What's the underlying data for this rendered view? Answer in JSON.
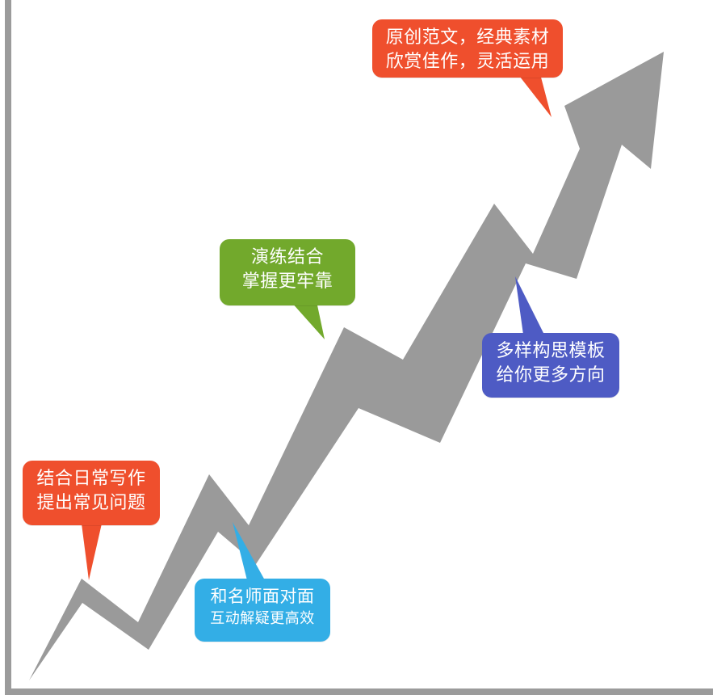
{
  "colors": {
    "arrow": "#9a9a9a",
    "axis": "#9b9b9b",
    "orange": "#ef4f2d",
    "green": "#72a92c",
    "blue": "#4e5bc4",
    "cyan": "#33aee6"
  },
  "callouts": {
    "top_right": {
      "line1": "原创范文，经典素材",
      "line2": "欣赏佳作，灵活运用"
    },
    "middle_green": {
      "line1": "演练结合",
      "line2": "掌握更牢靠"
    },
    "right_blue": {
      "line1": "多样构思模板",
      "line2": "给你更多方向"
    },
    "left_orange": {
      "line1": "结合日常写作",
      "line2": "提出常见问题"
    },
    "bottom_cyan": {
      "line1": "和名师面对面",
      "line2": "互动解疑更高效"
    }
  }
}
